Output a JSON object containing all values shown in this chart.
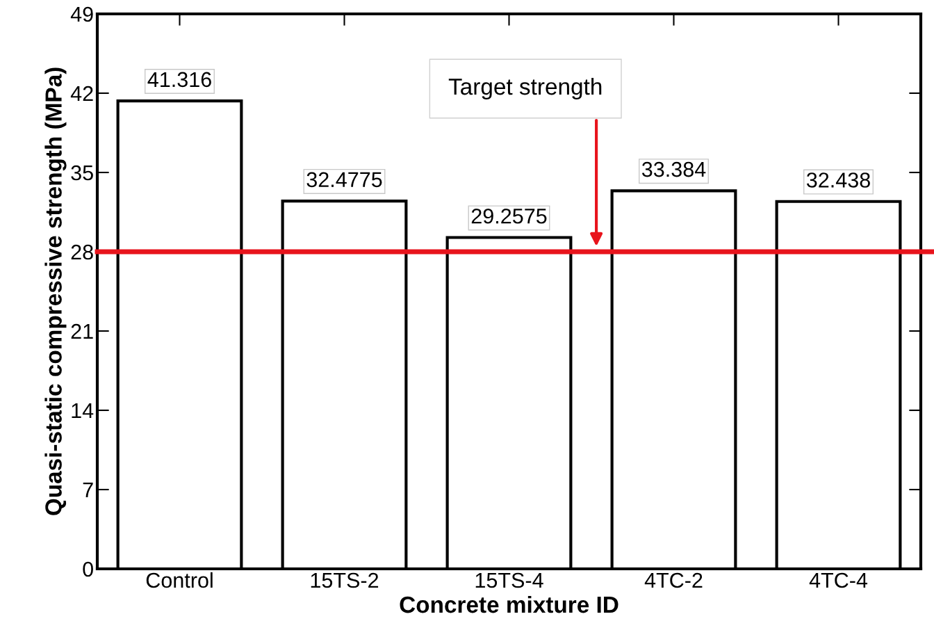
{
  "chart_data": {
    "type": "bar",
    "xlabel": "Concrete mixture ID",
    "ylabel": "Quasi-static compressive strength (MPa)",
    "categories": [
      "Control",
      "15TS-2",
      "15TS-4",
      "4TC-2",
      "4TC-4"
    ],
    "values": [
      41.316,
      32.4775,
      29.2575,
      33.384,
      32.438
    ],
    "color": "#ffffff",
    "data_labels": true,
    "ylim": [
      0,
      49
    ],
    "yticks": [
      0,
      7,
      14,
      21,
      28,
      35,
      42,
      49
    ],
    "grid": false,
    "ref_lines": [
      {
        "axis": "y",
        "value": 28,
        "label": "Target strength",
        "color": "#e8141c",
        "line_style": "solid"
      }
    ]
  }
}
